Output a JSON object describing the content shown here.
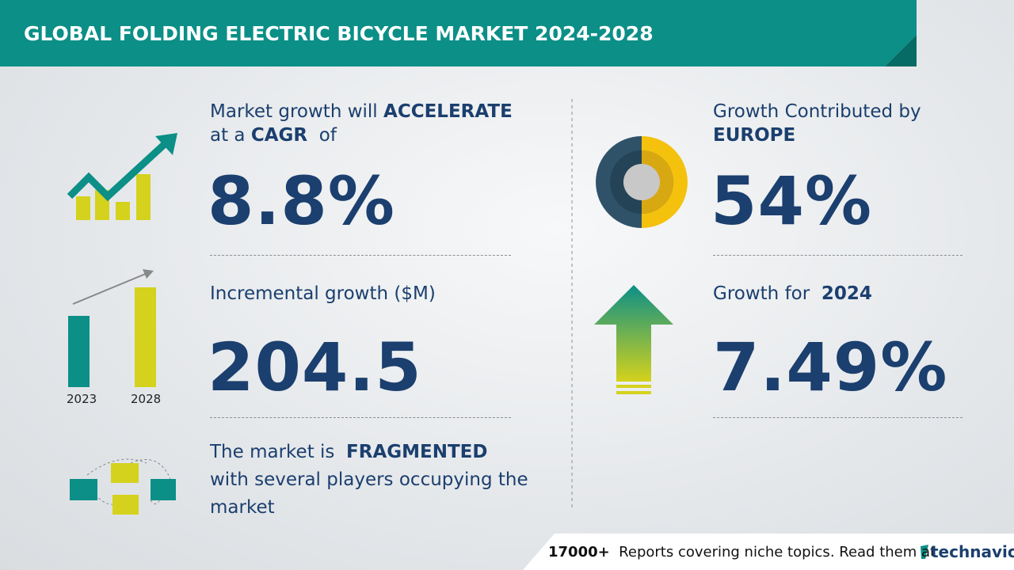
{
  "header": {
    "title": "GLOBAL FOLDING ELECTRIC BICYCLE MARKET 2024-2028"
  },
  "cagr": {
    "line1": "Market growth will",
    "line1_bold": "ACCELERATE",
    "line2": "at a",
    "line2_bold": "CAGR",
    "line2_end": "of",
    "value": "8.8%"
  },
  "incremental": {
    "label": "Incremental growth ($M)",
    "value": "204.5",
    "years": [
      "2023",
      "2028"
    ]
  },
  "fragmented": {
    "line1": "The market is",
    "line1_bold": "FRAGMENTED",
    "line2": "with several players occupying the",
    "line3": "market"
  },
  "region": {
    "label": "Growth Contributed by",
    "bold": "EUROPE",
    "value": "54%"
  },
  "growth_2024": {
    "label": "Growth for",
    "bold": "2024",
    "value": "7.49%"
  },
  "footer": {
    "count": "17000+",
    "text": "Reports covering niche topics. Read them at",
    "brand": "technavio"
  }
}
